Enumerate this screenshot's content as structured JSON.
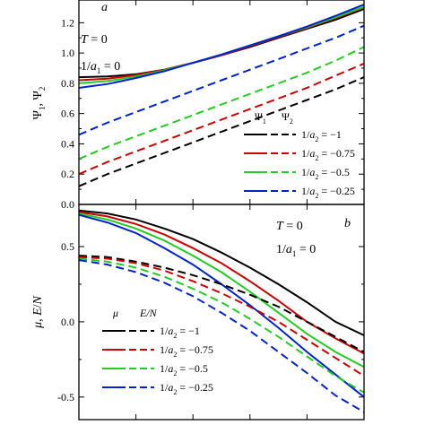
{
  "chart_data": [
    {
      "panel": "a",
      "type": "line",
      "ylabel": "Ψ1, Ψ2",
      "ylim": [
        0.0,
        1.35
      ],
      "xlim": [
        0,
        1
      ],
      "yticks": [
        0.0,
        0.2,
        0.4,
        0.6,
        0.8,
        1.0,
        1.2
      ],
      "ytick_labels": [
        "0.0",
        "0.2",
        "0.4",
        "0.6",
        "0.8",
        "1.0",
        "1.2"
      ],
      "annotations": {
        "panel_label": "a",
        "t_line": "T = 0",
        "a1_line": "1/a1 = 0"
      },
      "legend": {
        "placement": "bottom-right",
        "headers": [
          "Ψ1",
          "Ψ2"
        ],
        "entries": [
          "1/a2 = −1",
          "1/a2 = −0.75",
          "1/a2 = −0.5",
          "1/a2 = −0.25"
        ]
      },
      "series": [
        {
          "name": "Ψ1, 1/a2 = −1",
          "color": "#000000",
          "dash": false,
          "x": [
            0,
            0.1,
            0.2,
            0.3,
            0.4,
            0.5,
            0.6,
            0.7,
            0.8,
            0.9,
            1.0
          ],
          "y": [
            0.84,
            0.845,
            0.86,
            0.89,
            0.935,
            0.985,
            1.04,
            1.1,
            1.16,
            1.22,
            1.29
          ]
        },
        {
          "name": "Ψ1, 1/a2 = −0.75",
          "color": "#cc0000",
          "dash": false,
          "x": [
            0,
            0.1,
            0.2,
            0.3,
            0.4,
            0.5,
            0.6,
            0.7,
            0.8,
            0.9,
            1.0
          ],
          "y": [
            0.82,
            0.83,
            0.855,
            0.89,
            0.935,
            0.985,
            1.045,
            1.105,
            1.165,
            1.23,
            1.3
          ]
        },
        {
          "name": "Ψ1, 1/a2 = −0.5",
          "color": "#22cc22",
          "dash": false,
          "x": [
            0,
            0.1,
            0.2,
            0.3,
            0.4,
            0.5,
            0.6,
            0.7,
            0.8,
            0.9,
            1.0
          ],
          "y": [
            0.8,
            0.815,
            0.845,
            0.885,
            0.935,
            0.99,
            1.05,
            1.11,
            1.17,
            1.235,
            1.305
          ]
        },
        {
          "name": "Ψ1, 1/a2 = −0.25",
          "color": "#0022cc",
          "dash": false,
          "x": [
            0,
            0.1,
            0.2,
            0.3,
            0.4,
            0.5,
            0.6,
            0.7,
            0.8,
            0.9,
            1.0
          ],
          "y": [
            0.77,
            0.795,
            0.835,
            0.88,
            0.935,
            0.99,
            1.05,
            1.11,
            1.175,
            1.245,
            1.32
          ]
        },
        {
          "name": "Ψ2, 1/a2 = −1",
          "color": "#000000",
          "dash": true,
          "x": [
            0,
            0.1,
            0.2,
            0.3,
            0.4,
            0.5,
            0.6,
            0.7,
            0.8,
            0.9,
            1.0
          ],
          "y": [
            0.12,
            0.2,
            0.27,
            0.34,
            0.41,
            0.48,
            0.55,
            0.62,
            0.69,
            0.76,
            0.84
          ]
        },
        {
          "name": "Ψ2, 1/a2 = −0.75",
          "color": "#cc0000",
          "dash": true,
          "x": [
            0,
            0.1,
            0.2,
            0.3,
            0.4,
            0.5,
            0.6,
            0.7,
            0.8,
            0.9,
            1.0
          ],
          "y": [
            0.2,
            0.28,
            0.35,
            0.42,
            0.49,
            0.56,
            0.63,
            0.7,
            0.77,
            0.85,
            0.93
          ]
        },
        {
          "name": "Ψ2, 1/a2 = −0.5",
          "color": "#22cc22",
          "dash": true,
          "x": [
            0,
            0.1,
            0.2,
            0.3,
            0.4,
            0.5,
            0.6,
            0.7,
            0.8,
            0.9,
            1.0
          ],
          "y": [
            0.3,
            0.38,
            0.45,
            0.52,
            0.59,
            0.66,
            0.73,
            0.8,
            0.87,
            0.95,
            1.04
          ]
        },
        {
          "name": "Ψ2, 1/a2 = −0.25",
          "color": "#0022cc",
          "dash": true,
          "x": [
            0,
            0.1,
            0.2,
            0.3,
            0.4,
            0.5,
            0.6,
            0.7,
            0.8,
            0.9,
            1.0
          ],
          "y": [
            0.46,
            0.54,
            0.61,
            0.68,
            0.75,
            0.82,
            0.89,
            0.96,
            1.03,
            1.1,
            1.18
          ]
        }
      ]
    },
    {
      "panel": "b",
      "type": "line",
      "ylabel": "μ, E/N",
      "ylim": [
        -0.65,
        0.78
      ],
      "xlim": [
        0,
        1
      ],
      "yticks": [
        -0.5,
        0.0,
        0.5
      ],
      "ytick_labels": [
        "-0.5",
        "0.0",
        "0.5"
      ],
      "annotations": {
        "panel_label": "b",
        "t_line": "T = 0",
        "a1_line": "1/a1 = 0"
      },
      "legend": {
        "placement": "bottom-left",
        "headers": [
          "μ",
          "E/N"
        ],
        "entries": [
          "1/a2 = −1",
          "1/a2 = −0.75",
          "1/a2 = −0.5",
          "1/a2 = −0.25"
        ]
      },
      "series": [
        {
          "name": "μ, 1/a2 = −1",
          "color": "#000000",
          "dash": false,
          "x": [
            0,
            0.1,
            0.2,
            0.3,
            0.4,
            0.5,
            0.6,
            0.7,
            0.8,
            0.9,
            1.0
          ],
          "y": [
            0.74,
            0.72,
            0.68,
            0.62,
            0.55,
            0.46,
            0.36,
            0.25,
            0.13,
            0.0,
            -0.09
          ]
        },
        {
          "name": "μ, 1/a2 = −0.75",
          "color": "#cc0000",
          "dash": false,
          "x": [
            0,
            0.1,
            0.2,
            0.3,
            0.4,
            0.5,
            0.6,
            0.7,
            0.8,
            0.9,
            1.0
          ],
          "y": [
            0.73,
            0.7,
            0.65,
            0.58,
            0.49,
            0.39,
            0.27,
            0.14,
            0.0,
            -0.11,
            -0.21
          ]
        },
        {
          "name": "μ, 1/a2 = −0.5",
          "color": "#22cc22",
          "dash": false,
          "x": [
            0,
            0.1,
            0.2,
            0.3,
            0.4,
            0.5,
            0.6,
            0.7,
            0.8,
            0.9,
            1.0
          ],
          "y": [
            0.72,
            0.68,
            0.62,
            0.54,
            0.44,
            0.33,
            0.2,
            0.06,
            -0.08,
            -0.2,
            -0.3
          ]
        },
        {
          "name": "μ, 1/a2 = −0.25",
          "color": "#0022cc",
          "dash": false,
          "x": [
            0,
            0.1,
            0.2,
            0.3,
            0.4,
            0.5,
            0.6,
            0.7,
            0.8,
            0.9,
            1.0
          ],
          "y": [
            0.71,
            0.66,
            0.59,
            0.49,
            0.38,
            0.25,
            0.11,
            -0.04,
            -0.2,
            -0.35,
            -0.5
          ]
        },
        {
          "name": "E/N, 1/a2 = −1",
          "color": "#000000",
          "dash": true,
          "x": [
            0,
            0.1,
            0.2,
            0.3,
            0.4,
            0.5,
            0.6,
            0.7,
            0.8,
            0.9,
            1.0
          ],
          "y": [
            0.44,
            0.43,
            0.4,
            0.36,
            0.31,
            0.25,
            0.18,
            0.1,
            0.0,
            -0.1,
            -0.2
          ]
        },
        {
          "name": "E/N, 1/a2 = −0.75",
          "color": "#cc0000",
          "dash": true,
          "x": [
            0,
            0.1,
            0.2,
            0.3,
            0.4,
            0.5,
            0.6,
            0.7,
            0.8,
            0.9,
            1.0
          ],
          "y": [
            0.43,
            0.42,
            0.39,
            0.34,
            0.27,
            0.19,
            0.1,
            0.0,
            -0.12,
            -0.24,
            -0.36
          ]
        },
        {
          "name": "E/N, 1/a2 = −0.5",
          "color": "#22cc22",
          "dash": true,
          "x": [
            0,
            0.1,
            0.2,
            0.3,
            0.4,
            0.5,
            0.6,
            0.7,
            0.8,
            0.9,
            1.0
          ],
          "y": [
            0.42,
            0.4,
            0.36,
            0.3,
            0.22,
            0.13,
            0.02,
            -0.1,
            -0.23,
            -0.36,
            -0.47
          ]
        },
        {
          "name": "E/N, 1/a2 = −0.25",
          "color": "#0022cc",
          "dash": true,
          "x": [
            0,
            0.1,
            0.2,
            0.3,
            0.4,
            0.5,
            0.6,
            0.7,
            0.8,
            0.9,
            1.0
          ],
          "y": [
            0.41,
            0.38,
            0.33,
            0.26,
            0.17,
            0.06,
            -0.06,
            -0.2,
            -0.34,
            -0.49,
            -0.6
          ]
        }
      ]
    }
  ]
}
